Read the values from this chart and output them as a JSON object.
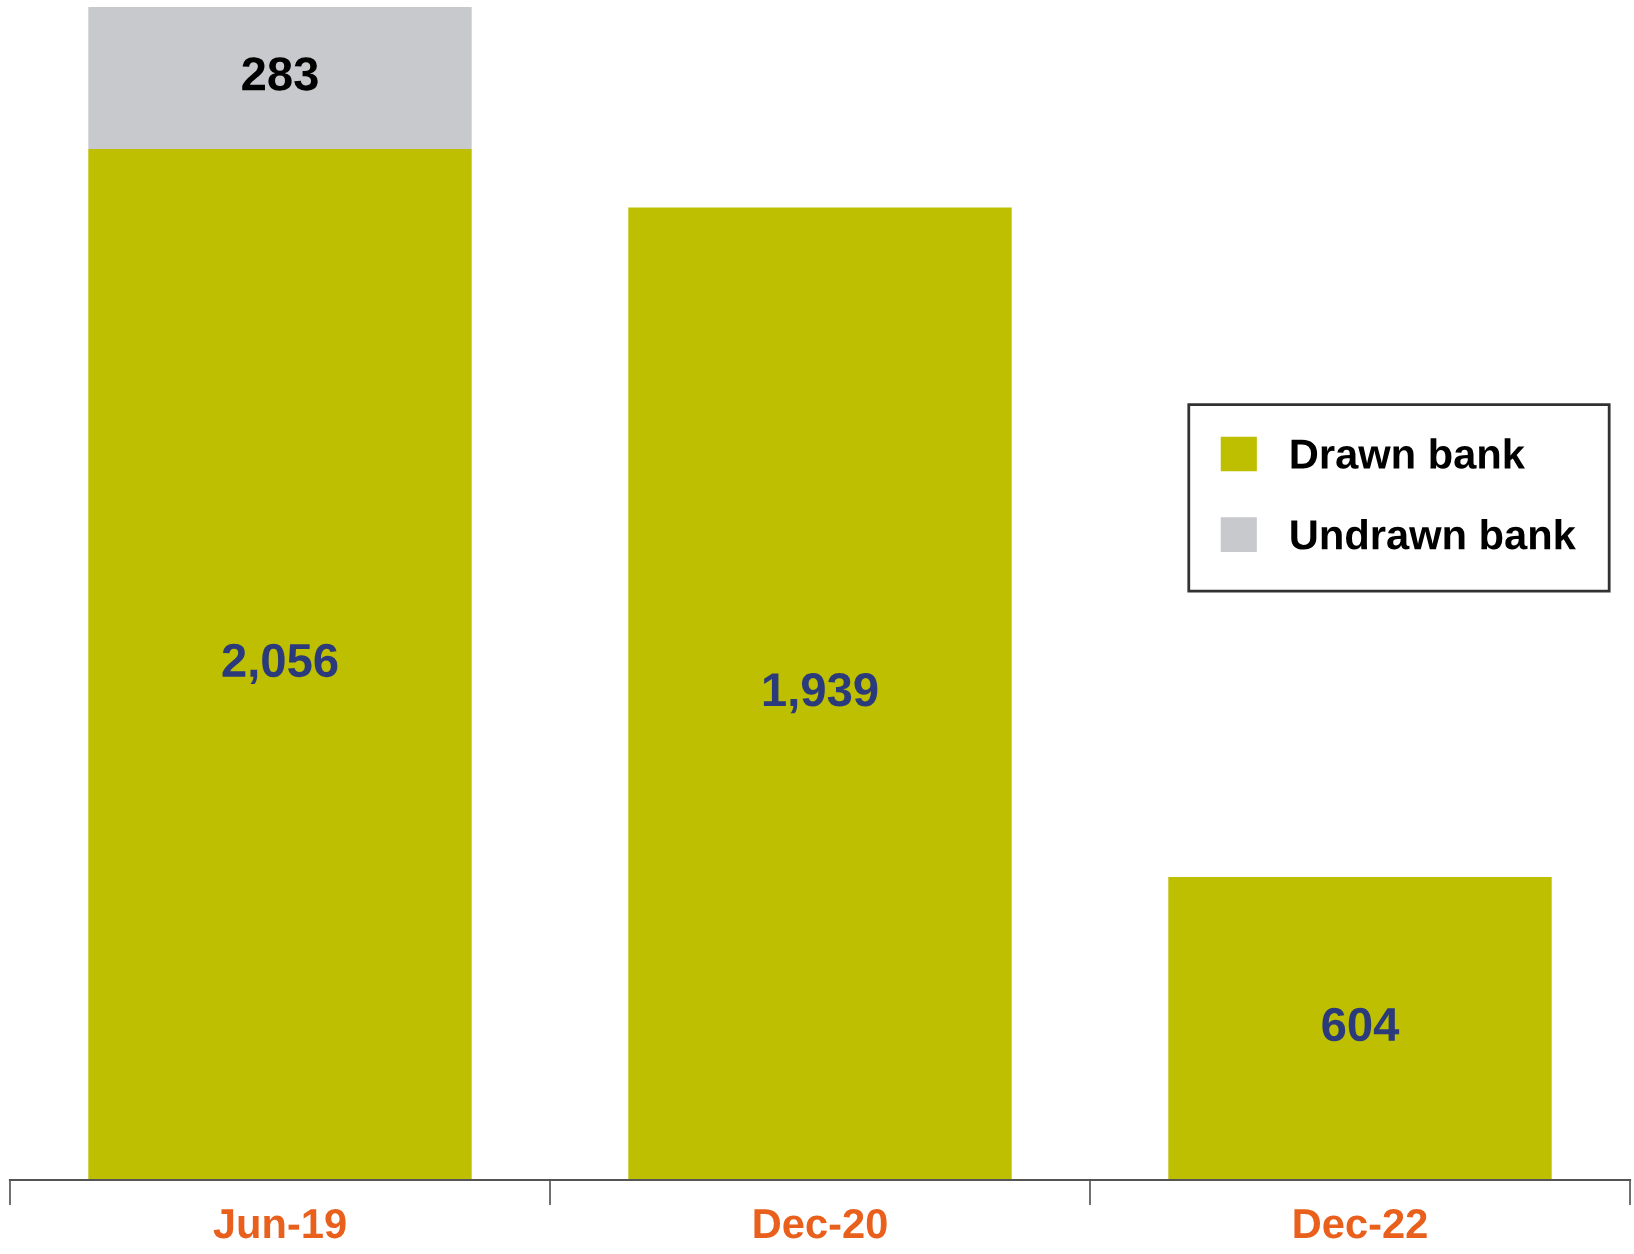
{
  "chart_data": {
    "type": "bar",
    "stacked": true,
    "categories": [
      "Jun-19",
      "Dec-20",
      "Dec-22"
    ],
    "series": [
      {
        "name": "Drawn bank",
        "color": "#bdbf00",
        "values": [
          2056,
          1939,
          604
        ],
        "value_labels": [
          "2,056",
          "1,939",
          "604"
        ]
      },
      {
        "name": "Undrawn bank",
        "color": "#c8c9cd",
        "values": [
          283,
          null,
          null
        ],
        "value_labels": [
          "283",
          null,
          null
        ]
      }
    ],
    "ylim": [
      0,
      2345
    ],
    "tick_labels": "x",
    "legend": "right",
    "grid": false
  }
}
